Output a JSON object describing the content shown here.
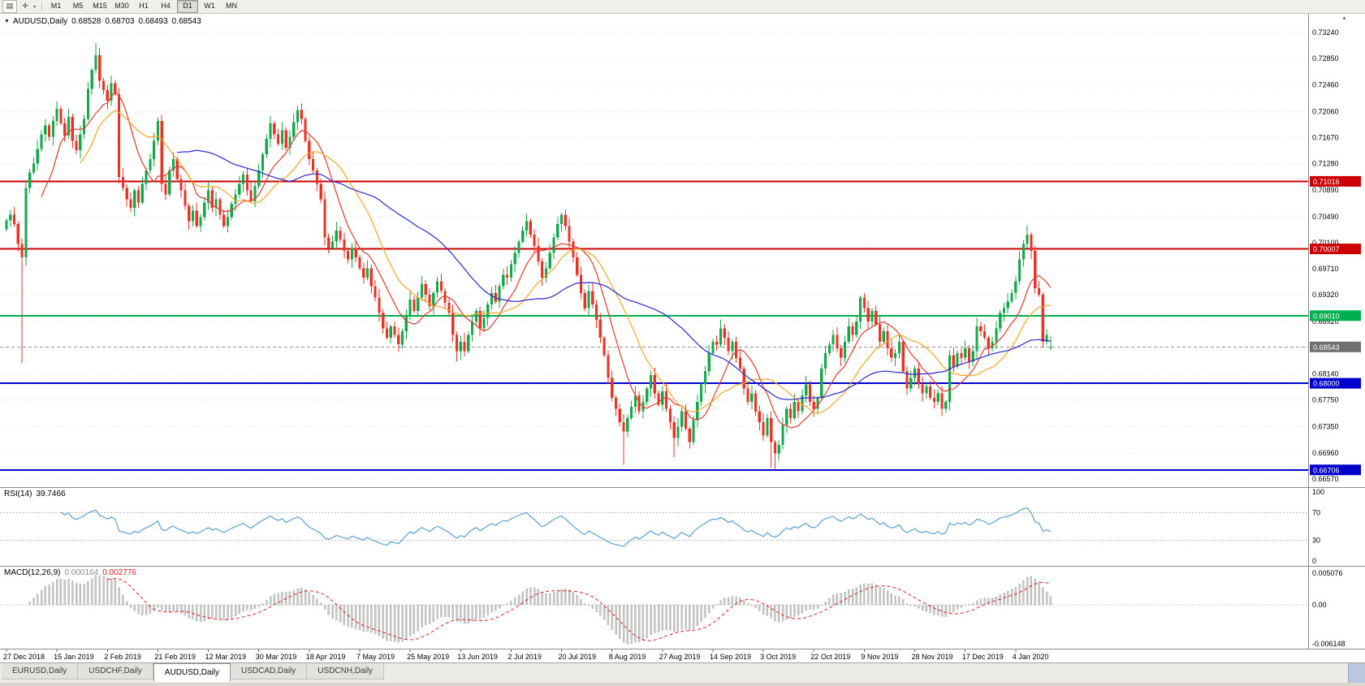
{
  "toolbar": {
    "icons": {
      "chart_window": "▤",
      "crosshair": "✛",
      "caret": "▾"
    },
    "timeframes": [
      "M1",
      "M5",
      "M15",
      "M30",
      "H1",
      "H4",
      "D1",
      "W1",
      "MN"
    ],
    "active_timeframe": "D1",
    "scroll_up_icon": "▲"
  },
  "header": {
    "collapse_icon": "▼",
    "symbol": "AUDUSD,Daily",
    "open": "0.68528",
    "high": "0.68703",
    "low": "0.68493",
    "close": "0.68543"
  },
  "chart_data": {
    "type": "candlestick",
    "title": "AUDUSD,Daily",
    "x_axis": {
      "labels": [
        "27 Dec 2018",
        "15 Jan 2019",
        "2 Feb 2019",
        "21 Feb 2019",
        "12 Mar 2019",
        "30 Mar 2019",
        "18 Apr 2019",
        "7 May 2019",
        "25 May 2019",
        "13 Jun 2019",
        "2 Jul 2019",
        "20 Jul 2019",
        "8 Aug 2019",
        "27 Aug 2019",
        "14 Sep 2019",
        "3 Oct 2019",
        "22 Oct 2019",
        "9 Nov 2019",
        "28 Nov 2019",
        "17 Dec 2019",
        "4 Jan 2020"
      ],
      "label_step": 13
    },
    "y_axis": {
      "top_value": 0.7324,
      "bottom_value": 0.6657,
      "ticks": [
        0.7324,
        0.7285,
        0.7246,
        0.7206,
        0.7167,
        0.7128,
        0.7089,
        0.7049,
        0.701,
        0.6971,
        0.6932,
        0.6892,
        0.6853,
        0.6814,
        0.6775,
        0.6735,
        0.6696,
        0.6657
      ],
      "tick_hidden_by_badge": 0.6853
    },
    "series": {
      "first_open": 0.703,
      "closes": [
        0.7043,
        0.7052,
        0.7038,
        0.7008,
        0.6988,
        0.7092,
        0.7115,
        0.7128,
        0.715,
        0.7172,
        0.7185,
        0.7168,
        0.7192,
        0.721,
        0.7188,
        0.717,
        0.7198,
        0.7162,
        0.7148,
        0.7172,
        0.7195,
        0.724,
        0.7268,
        0.729,
        0.7252,
        0.7238,
        0.7222,
        0.7248,
        0.7232,
        0.7108,
        0.7092,
        0.7075,
        0.7062,
        0.7088,
        0.707,
        0.7098,
        0.7118,
        0.7135,
        0.7162,
        0.7192,
        0.7098,
        0.7082,
        0.7118,
        0.7135,
        0.7105,
        0.7088,
        0.7065,
        0.7042,
        0.7058,
        0.7035,
        0.7048,
        0.707,
        0.7088,
        0.7062,
        0.7075,
        0.7052,
        0.7035,
        0.7048,
        0.7068,
        0.7082,
        0.7098,
        0.7112,
        0.7088,
        0.7072,
        0.7095,
        0.7118,
        0.7142,
        0.7165,
        0.7188,
        0.7172,
        0.7158,
        0.7178,
        0.7152,
        0.7168,
        0.719,
        0.7208,
        0.7195,
        0.7162,
        0.7135,
        0.7118,
        0.7098,
        0.7075,
        0.7018,
        0.7002,
        0.7012,
        0.7028,
        0.7015,
        0.6998,
        0.6985,
        0.7002,
        0.6988,
        0.6972,
        0.6958,
        0.6972,
        0.6945,
        0.6928,
        0.6905,
        0.6882,
        0.6868,
        0.6885,
        0.6872,
        0.6858,
        0.6878,
        0.6902,
        0.6925,
        0.6908,
        0.6928,
        0.6948,
        0.6932,
        0.6915,
        0.6935,
        0.6952,
        0.6938,
        0.692,
        0.6905,
        0.6872,
        0.6848,
        0.6862,
        0.6848,
        0.6872,
        0.6892,
        0.6908,
        0.6882,
        0.6898,
        0.6918,
        0.6935,
        0.6922,
        0.6945,
        0.6962,
        0.6958,
        0.6978,
        0.6995,
        0.7012,
        0.7028,
        0.7042,
        0.7022,
        0.7005,
        0.6982,
        0.6958,
        0.6972,
        0.6995,
        0.7018,
        0.7038,
        0.7052,
        0.7035,
        0.7012,
        0.6988,
        0.6962,
        0.6935,
        0.6912,
        0.6938,
        0.6918,
        0.6895,
        0.6868,
        0.6842,
        0.6808,
        0.6778,
        0.6762,
        0.6742,
        0.6728,
        0.6748,
        0.6765,
        0.6782,
        0.6758,
        0.6772,
        0.6792,
        0.6812,
        0.6785,
        0.6768,
        0.6788,
        0.6762,
        0.6742,
        0.6718,
        0.6735,
        0.6758,
        0.6732,
        0.6712,
        0.6745,
        0.6772,
        0.6798,
        0.6818,
        0.6845,
        0.6862,
        0.6858,
        0.6882,
        0.6868,
        0.6848,
        0.6862,
        0.6838,
        0.6822,
        0.6792,
        0.6772,
        0.6785,
        0.6758,
        0.6742,
        0.6722,
        0.6748,
        0.6712,
        0.6695,
        0.6708,
        0.6738,
        0.6762,
        0.6748,
        0.6772,
        0.6758,
        0.6782,
        0.6798,
        0.6772,
        0.6762,
        0.6778,
        0.6822,
        0.6845,
        0.6858,
        0.6872,
        0.6852,
        0.6838,
        0.6862,
        0.6885,
        0.6872,
        0.6892,
        0.6928,
        0.6912,
        0.6892,
        0.6908,
        0.6888,
        0.6862,
        0.6878,
        0.6852,
        0.6838,
        0.6845,
        0.6862,
        0.6818,
        0.6792,
        0.6808,
        0.6822,
        0.6798,
        0.6785,
        0.6795,
        0.6778,
        0.6772,
        0.6785,
        0.6762,
        0.6772,
        0.6842,
        0.6825,
        0.6845,
        0.6838,
        0.6852,
        0.6832,
        0.6848,
        0.6885,
        0.6878,
        0.6868,
        0.6852,
        0.6862,
        0.6882,
        0.6905,
        0.6912,
        0.6922,
        0.6935,
        0.6952,
        0.6985,
        0.7008,
        0.7022,
        0.6998,
        0.6942,
        0.6932,
        0.6862,
        0.6872,
        0.68543
      ],
      "wick_events": {
        "4": {
          "l": 0.683
        },
        "23": {
          "h": 0.7308
        },
        "116": {
          "l": 0.6832
        },
        "159": {
          "l": 0.6678
        },
        "172": {
          "l": 0.669
        },
        "197": {
          "l": 0.6674
        },
        "198": {
          "l": 0.6672
        },
        "263": {
          "h": 0.7036
        }
      },
      "last_ohlc": [
        0.68528,
        0.68703,
        0.68493,
        0.68543
      ]
    },
    "moving_averages": [
      {
        "period": 10,
        "color": "#e23a2e"
      },
      {
        "period": 20,
        "color": "#f5a623"
      },
      {
        "period": 45,
        "color": "#2a2ad0"
      }
    ],
    "hlines": [
      {
        "value": 0.71016,
        "label": "0.71016",
        "color": "#cc0000"
      },
      {
        "value": 0.70007,
        "label": "0.70007",
        "color": "#cc0000"
      },
      {
        "value": 0.6901,
        "label": "0.69010",
        "color": "#00b050"
      },
      {
        "value": 0.68,
        "label": "0.68000",
        "color": "#0000cc"
      },
      {
        "value": 0.66706,
        "label": "0.66706",
        "color": "#0000cc"
      }
    ],
    "current_price": {
      "value": 0.68543,
      "label": "0.68543",
      "badge_color": "#6f6f6f"
    },
    "candle_colors": {
      "up": "#12a94b",
      "down": "#ef3124"
    },
    "rsi": {
      "name": "RSI(14)",
      "value": "39.7466",
      "period": 14,
      "levels": [
        100,
        70,
        30,
        0
      ],
      "level_lines": [
        70,
        30
      ],
      "line_color": "#4a9bd4",
      "range": [
        0,
        100
      ]
    },
    "macd": {
      "name": "MACD(12,26,9)",
      "values": [
        "0.000164",
        "0.002776"
      ],
      "fast": 12,
      "slow": 26,
      "signal": 9,
      "axis_labels": [
        "0.005076",
        "0.00",
        "-0.006148"
      ],
      "axis_values": [
        0.005076,
        0,
        -0.006148
      ],
      "bar_color": "#c9c9c9",
      "bar_stroke": "#a9a9a9",
      "signal_color": "#e02020"
    }
  },
  "tabs": {
    "items": [
      "EURUSD,Daily",
      "USDCHF,Daily",
      "AUDUSD,Daily",
      "USDCAD,Daily",
      "USDCNH,Daily"
    ],
    "active_index": 2
  }
}
